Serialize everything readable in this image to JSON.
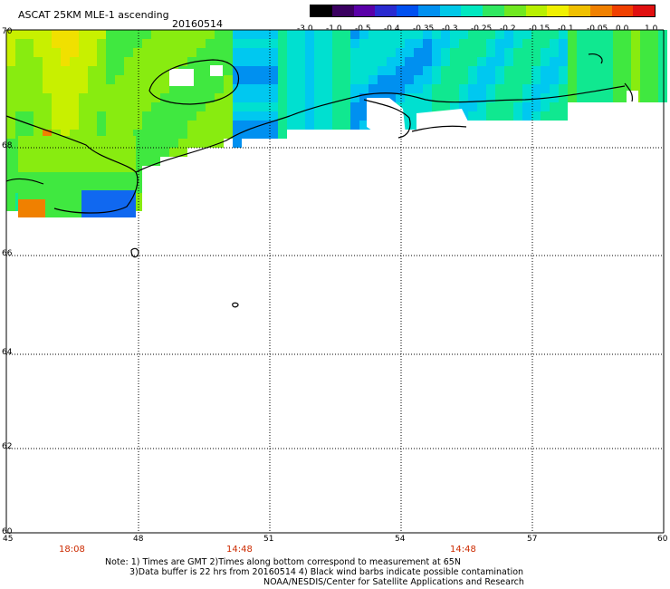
{
  "header": {
    "title": "ASCAT 25KM MLE-1 ascending",
    "date": "20160514"
  },
  "colorbar": {
    "labels": [
      "-3.0",
      "-1.0",
      "-0.5",
      "-0.4",
      "-0.35",
      "-0.3",
      "-0.25",
      "-0.2",
      "-0.15",
      "-0.1",
      "-0.05",
      "0.0",
      "1.0"
    ],
    "colors": [
      "#000000",
      "#3a0060",
      "#5a00a8",
      "#2a2ad0",
      "#0050f0",
      "#0090f0",
      "#00c8e8",
      "#00e8c0",
      "#30e860",
      "#70e820",
      "#b8f000",
      "#f0f000",
      "#f0c000",
      "#f08000",
      "#f04000",
      "#e01010"
    ]
  },
  "map": {
    "lat_labels": [
      "70",
      "68",
      "66",
      "64",
      "62",
      "60"
    ],
    "lon_labels": [
      "45",
      "48",
      "51",
      "54",
      "57",
      "60"
    ],
    "time_labels": [
      "18:08",
      "14:48",
      "14:48"
    ],
    "land_color": "#ffffff",
    "grid_style": "dotted"
  },
  "footer": {
    "note_line1": "Note: 1) Times are GMT 2)Times along bottom correspond to measurement at 65N",
    "note_line2": "3)Data buffer is 22 hrs from 20160514 4) Black wind barbs indicate possible contamination",
    "credit": "NOAA/NESDIS/Center for Satellite Applications and Research"
  }
}
